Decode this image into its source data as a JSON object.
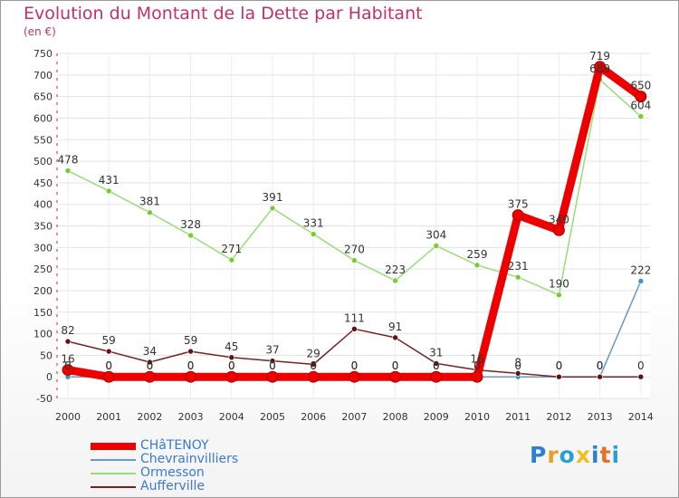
{
  "chart_data": {
    "type": "line",
    "title": "Evolution du Montant de la Dette par Habitant",
    "subtitle": "(en €)",
    "categories": [
      "2000",
      "2001",
      "2002",
      "2003",
      "2004",
      "2005",
      "2006",
      "2007",
      "2008",
      "2009",
      "2010",
      "2011",
      "2012",
      "2013",
      "2014"
    ],
    "yticks": [
      -50,
      0,
      50,
      100,
      150,
      200,
      250,
      300,
      350,
      400,
      450,
      500,
      550,
      600,
      650,
      700,
      750
    ],
    "ylim": [
      -50,
      750
    ],
    "series": [
      {
        "name": "CHâTENOY",
        "color": "#ee0000",
        "dot": "#cc0000",
        "values": [
          16,
          0,
          0,
          0,
          0,
          0,
          0,
          0,
          0,
          0,
          0,
          375,
          340,
          719,
          650
        ],
        "labels": [
          "16",
          "0",
          "0",
          "0",
          "0",
          "0",
          "0",
          "0",
          "0",
          "0",
          "0",
          "375",
          "340",
          "719",
          "650"
        ]
      },
      {
        "name": "Chevrainvilliers",
        "color": "#6699cc",
        "dot": "#3399cc",
        "values": [
          0,
          0,
          0,
          0,
          0,
          0,
          0,
          0,
          0,
          0,
          0,
          0,
          0,
          0,
          222
        ],
        "labels": [
          "0",
          "0",
          "0",
          "0",
          "0",
          "0",
          "0",
          "0",
          "0",
          "0",
          "0",
          "0",
          "0",
          "0",
          "222"
        ]
      },
      {
        "name": "Ormesson",
        "color": "#99dd77",
        "dot": "#77cc33",
        "values": [
          478,
          431,
          381,
          328,
          271,
          391,
          331,
          270,
          223,
          304,
          259,
          231,
          190,
          689,
          604
        ],
        "labels": [
          "478",
          "431",
          "381",
          "328",
          "271",
          "391",
          "331",
          "270",
          "223",
          "304",
          "259",
          "231",
          "190",
          "689",
          "604"
        ]
      },
      {
        "name": "Aufferville",
        "color": "#772222",
        "dot": "#661111",
        "values": [
          82,
          59,
          34,
          59,
          45,
          37,
          29,
          111,
          91,
          31,
          16,
          8,
          0,
          0,
          0
        ],
        "labels": [
          "82",
          "59",
          "34",
          "59",
          "45",
          "37",
          "29",
          "111",
          "91",
          "31",
          "16",
          "8",
          "0",
          "0",
          "0"
        ]
      }
    ]
  },
  "legend": {
    "items": [
      "CHâTENOY",
      "Chevrainvilliers",
      "Ormesson",
      "Aufferville"
    ]
  },
  "logo": {
    "letters": [
      "P",
      "r",
      "o",
      "x",
      "i",
      "t",
      "i"
    ],
    "colors": [
      "#2b7fd4",
      "#e8a020",
      "#2b9fd4",
      "#f0c020",
      "#2b7fd4",
      "#e87020",
      "#2b9fd4"
    ]
  }
}
